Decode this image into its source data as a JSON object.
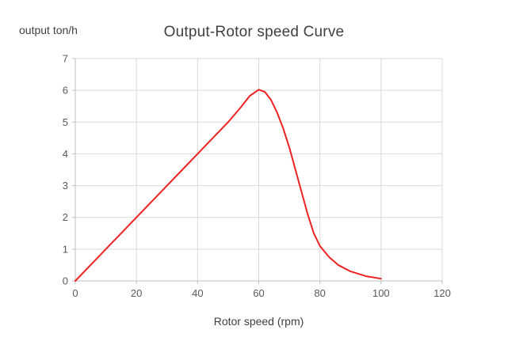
{
  "title": "Output-Rotor speed Curve",
  "y_unit_label": "output ton/h",
  "x_axis_title": "Rotor speed (rpm)",
  "colors": {
    "grid": "#d9d9d9",
    "axis": "#bfbfbf",
    "tick_text": "#595959",
    "series_line": "#ee2222",
    "title_text": "#404040"
  },
  "chart_data": {
    "type": "line",
    "title": "Output-Rotor speed Curve",
    "xlabel": "Rotor speed (rpm)",
    "ylabel": "output ton/h",
    "xlim": [
      0,
      120
    ],
    "ylim": [
      0,
      7
    ],
    "x_ticks": [
      0,
      20,
      40,
      60,
      80,
      100,
      120
    ],
    "y_ticks": [
      0,
      1,
      2,
      3,
      4,
      5,
      6,
      7
    ],
    "grid": true,
    "legend": false,
    "series": [
      {
        "name": "Output",
        "color": "#ee2222",
        "x": [
          0,
          5,
          10,
          15,
          20,
          25,
          30,
          35,
          40,
          45,
          50,
          54,
          57,
          60,
          62,
          64,
          66,
          68,
          70,
          72,
          74,
          76,
          78,
          80,
          83,
          86,
          90,
          95,
          100
        ],
        "y": [
          0,
          0.5,
          1.0,
          1.5,
          2.0,
          2.5,
          3.0,
          3.5,
          4.0,
          4.5,
          5.0,
          5.45,
          5.82,
          6.02,
          5.95,
          5.7,
          5.3,
          4.8,
          4.2,
          3.5,
          2.8,
          2.1,
          1.5,
          1.1,
          0.75,
          0.5,
          0.3,
          0.15,
          0.07
        ]
      }
    ]
  }
}
